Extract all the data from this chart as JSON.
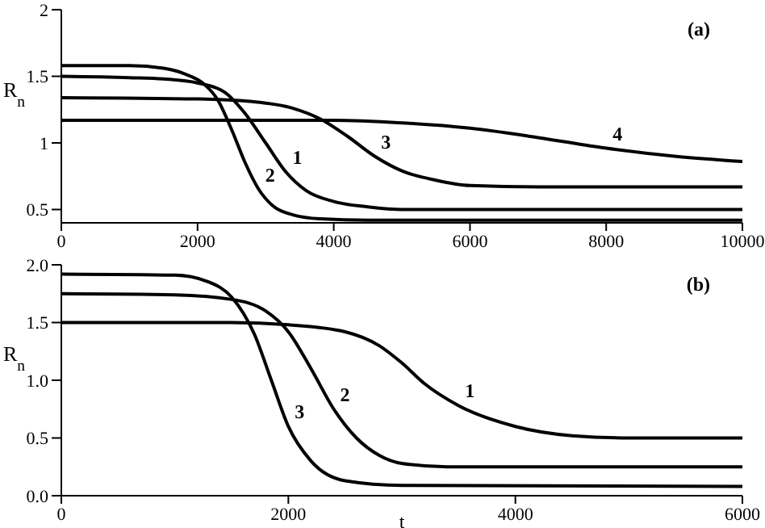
{
  "chart_data": [
    {
      "type": "line",
      "ylabel": "R$_{n}$",
      "xlim": [
        0,
        10000
      ],
      "xticks": [
        0,
        2000,
        4000,
        6000,
        8000,
        10000
      ],
      "ylim": [
        0.4,
        2
      ],
      "yticks": [
        0.5,
        1,
        1.5,
        2
      ],
      "grid": false,
      "legend": false,
      "marker": "none",
      "line_style": "solid",
      "annotations": [
        "(a)"
      ],
      "series": [
        {
          "name": "1",
          "color": "#000000",
          "x": [
            0,
            1000,
            1500,
            2000,
            2400,
            2700,
            3000,
            3300,
            3600,
            4000,
            4500,
            5000,
            6000,
            10000
          ],
          "values": [
            1.5,
            1.49,
            1.48,
            1.45,
            1.38,
            1.22,
            1.0,
            0.78,
            0.64,
            0.56,
            0.52,
            0.5,
            0.5,
            0.5
          ]
        },
        {
          "name": "2",
          "color": "#000000",
          "x": [
            0,
            1000,
            1500,
            1800,
            2100,
            2300,
            2500,
            2700,
            2900,
            3100,
            3400,
            3800,
            4500,
            10000
          ],
          "values": [
            1.58,
            1.58,
            1.56,
            1.52,
            1.44,
            1.32,
            1.1,
            0.85,
            0.65,
            0.53,
            0.46,
            0.43,
            0.42,
            0.42
          ]
        },
        {
          "name": "3",
          "color": "#000000",
          "x": [
            0,
            2000,
            2800,
            3400,
            3800,
            4200,
            4600,
            5000,
            5500,
            6000,
            7000,
            10000
          ],
          "values": [
            1.34,
            1.33,
            1.31,
            1.26,
            1.18,
            1.05,
            0.9,
            0.79,
            0.72,
            0.68,
            0.67,
            0.67
          ]
        },
        {
          "name": "4",
          "color": "#000000",
          "x": [
            0,
            4000,
            5000,
            6000,
            7000,
            8000,
            9000,
            10000
          ],
          "values": [
            1.17,
            1.17,
            1.15,
            1.11,
            1.04,
            0.96,
            0.9,
            0.86
          ]
        }
      ]
    },
    {
      "type": "line",
      "xlabel": "t",
      "ylabel": "R$_{n}$",
      "xlim": [
        0,
        6000
      ],
      "xticks": [
        0,
        2000,
        4000,
        6000
      ],
      "ylim": [
        0,
        2
      ],
      "yticks": [
        {
          "value": 0,
          "label": "0.0"
        },
        {
          "value": 0.5,
          "label": "0.5"
        },
        {
          "value": 1,
          "label": "1.0"
        },
        {
          "value": 1.5,
          "label": "1.5"
        },
        {
          "value": 2,
          "label": "2.0"
        }
      ],
      "grid": false,
      "legend": false,
      "marker": "none",
      "line_style": "solid",
      "annotations": [
        "(b)"
      ],
      "series": [
        {
          "name": "1",
          "color": "#000000",
          "x": [
            0,
            1500,
            2000,
            2500,
            2800,
            3000,
            3200,
            3500,
            4000,
            4500,
            5000,
            6000
          ],
          "values": [
            1.5,
            1.5,
            1.48,
            1.42,
            1.3,
            1.15,
            0.97,
            0.78,
            0.6,
            0.52,
            0.5,
            0.5
          ]
        },
        {
          "name": "2",
          "color": "#000000",
          "x": [
            0,
            1000,
            1500,
            1800,
            2000,
            2200,
            2400,
            2600,
            2800,
            3000,
            3400,
            6000
          ],
          "values": [
            1.75,
            1.74,
            1.7,
            1.6,
            1.42,
            1.1,
            0.75,
            0.5,
            0.35,
            0.28,
            0.25,
            0.25
          ]
        },
        {
          "name": "3",
          "color": "#000000",
          "x": [
            0,
            1000,
            1300,
            1500,
            1700,
            1850,
            2000,
            2200,
            2500,
            3000,
            6000
          ],
          "values": [
            1.92,
            1.91,
            1.85,
            1.72,
            1.4,
            1.0,
            0.6,
            0.3,
            0.13,
            0.09,
            0.08
          ]
        }
      ]
    }
  ]
}
